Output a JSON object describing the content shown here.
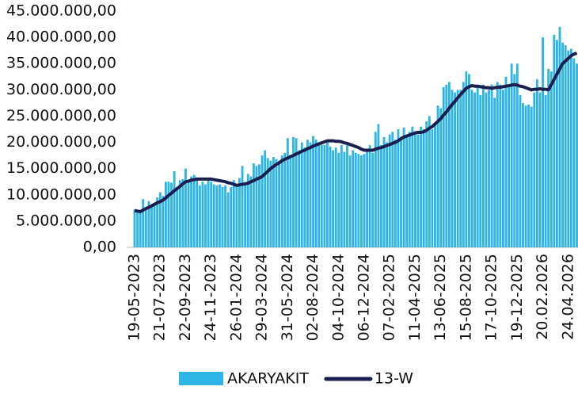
{
  "chart_data": {
    "type": "bar_line",
    "categories": [
      "19-05-2023",
      null,
      null,
      null,
      null,
      null,
      null,
      null,
      null,
      "21-07-2023",
      null,
      null,
      null,
      null,
      null,
      null,
      null,
      null,
      "22-09-2023",
      null,
      null,
      null,
      null,
      null,
      null,
      null,
      null,
      "24-11-2023",
      null,
      null,
      null,
      null,
      null,
      null,
      null,
      null,
      "26-01-2024",
      null,
      null,
      null,
      null,
      null,
      null,
      null,
      null,
      "29-03-2024",
      null,
      null,
      null,
      null,
      null,
      null,
      null,
      null,
      "31-05-2024",
      null,
      null,
      null,
      null,
      null,
      null,
      null,
      null,
      "02-08-2024",
      null,
      null,
      null,
      null,
      null,
      null,
      null,
      null,
      "04-10-2024",
      null,
      null,
      null,
      null,
      null,
      null,
      null,
      null,
      "06-12-2024",
      null,
      null,
      null,
      null,
      null,
      null,
      null,
      null,
      "07-02-2025",
      null,
      null,
      null,
      null,
      null,
      null,
      null,
      null,
      "11-04-2025",
      null,
      null,
      null,
      null,
      null,
      null,
      null,
      null,
      "13-06-2025",
      null,
      null,
      null,
      null,
      null,
      null,
      null,
      null,
      "15-08-2025",
      null,
      null,
      null,
      null,
      null,
      null,
      null,
      null,
      "17-10-2025",
      null,
      null,
      null,
      null,
      null,
      null,
      null,
      null,
      "19-12-2025",
      null,
      null,
      null,
      null,
      null,
      null,
      null,
      null,
      "20.02.2026",
      null,
      null,
      null,
      null,
      null,
      null,
      null,
      null,
      "24.04.2026",
      null,
      null,
      null
    ],
    "series": [
      {
        "name": "AKARYAKIT",
        "kind": "bar",
        "color": "#2fb4e6",
        "values": [
          7200000,
          6900000,
          7000000,
          9200000,
          7500000,
          8800000,
          8000000,
          8500000,
          9500000,
          10500000,
          9800000,
          12500000,
          12500000,
          12300000,
          14500000,
          11500000,
          12800000,
          13000000,
          15000000,
          12500000,
          13500000,
          13800000,
          13200000,
          11800000,
          12500000,
          12000000,
          13000000,
          12500000,
          12000000,
          11800000,
          12000000,
          11500000,
          11800000,
          10500000,
          11500000,
          12800000,
          11800000,
          13200000,
          15500000,
          12000000,
          14000000,
          13500000,
          16000000,
          15500000,
          15800000,
          17500000,
          18500000,
          17000000,
          16500000,
          17200000,
          16800000,
          16500000,
          17500000,
          18000000,
          20800000,
          17500000,
          21000000,
          20800000,
          18500000,
          20000000,
          19000000,
          20500000,
          20000000,
          21200000,
          20500000,
          20000000,
          19500000,
          19500000,
          20500000,
          19200000,
          18500000,
          19000000,
          18000000,
          19500000,
          18200000,
          19500000,
          17500000,
          18500000,
          18000000,
          17800000,
          17500000,
          17800000,
          18500000,
          19500000,
          18000000,
          22000000,
          23500000,
          19500000,
          21000000,
          20000000,
          21500000,
          22000000,
          20500000,
          22500000,
          21000000,
          22800000,
          21500000,
          22000000,
          23000000,
          22000000,
          21500000,
          23000000,
          22500000,
          24000000,
          25000000,
          22500000,
          23500000,
          27000000,
          26500000,
          30500000,
          31000000,
          31500000,
          30000000,
          29500000,
          30000000,
          30000000,
          31500000,
          33500000,
          33000000,
          30000000,
          29500000,
          30500000,
          29000000,
          31000000,
          29500000,
          30000000,
          31000000,
          28500000,
          31500000,
          31000000,
          30000000,
          32500000,
          31000000,
          35000000,
          33000000,
          35000000,
          29000000,
          27500000,
          27000000,
          27200000,
          26800000,
          29500000,
          32000000,
          29500000,
          40000000,
          29000000,
          34000000,
          33500000,
          40500000,
          39500000,
          42000000,
          39000000,
          38500000,
          37500000,
          37800000,
          36000000,
          35000000
        ]
      },
      {
        "name": "13-W",
        "kind": "line",
        "color": "#1b1f4f",
        "values": [
          7000000,
          6900000,
          6800000,
          7100000,
          7400000,
          7600000,
          7900000,
          8200000,
          8500000,
          8700000,
          9000000,
          9400000,
          9900000,
          10300000,
          10800000,
          11200000,
          11600000,
          12100000,
          12500000,
          12600000,
          12800000,
          12900000,
          13000000,
          13000000,
          13000000,
          13000000,
          13000000,
          13000000,
          12900000,
          12800000,
          12700000,
          12600000,
          12500000,
          12300000,
          12200000,
          12000000,
          11800000,
          11900000,
          12000000,
          12100000,
          12200000,
          12500000,
          12700000,
          13000000,
          13200000,
          13500000,
          14000000,
          14500000,
          15000000,
          15400000,
          15800000,
          16100000,
          16500000,
          16800000,
          17000000,
          17300000,
          17500000,
          17800000,
          18000000,
          18300000,
          18500000,
          18800000,
          19000000,
          19300000,
          19500000,
          19700000,
          19900000,
          20100000,
          20300000,
          20300000,
          20300000,
          20200000,
          20200000,
          20100000,
          19900000,
          19800000,
          19600000,
          19400000,
          19200000,
          19000000,
          18700000,
          18500000,
          18500000,
          18500000,
          18500000,
          18700000,
          18900000,
          19000000,
          19200000,
          19400000,
          19600000,
          19800000,
          20000000,
          20300000,
          20700000,
          21000000,
          21200000,
          21400000,
          21600000,
          21800000,
          21900000,
          21900000,
          22000000,
          22300000,
          22700000,
          23000000,
          23500000,
          24000000,
          24500000,
          25200000,
          25800000,
          26500000,
          27200000,
          27800000,
          28500000,
          29100000,
          29700000,
          30300000,
          30600000,
          30800000,
          30700000,
          30700000,
          30600000,
          30500000,
          30400000,
          30400000,
          30300000,
          30400000,
          30500000,
          30500000,
          30600000,
          30700000,
          30800000,
          30900000,
          31000000,
          30900000,
          30700000,
          30600000,
          30400000,
          30200000,
          30000000,
          30100000,
          30100000,
          30200000,
          30100000,
          30100000,
          30000000,
          31000000,
          32000000,
          33000000,
          34000000,
          35000000,
          35500000,
          36000000,
          36500000,
          36800000,
          37000000
        ]
      }
    ],
    "ylim": [
      0,
      45000000
    ],
    "yticks": [
      {
        "value": 0,
        "label": "0,00"
      },
      {
        "value": 5000000,
        "label": "5.000.000,00"
      },
      {
        "value": 10000000,
        "label": "10.000.000,00"
      },
      {
        "value": 15000000,
        "label": "15.000.000,00"
      },
      {
        "value": 20000000,
        "label": "20.000.000,00"
      },
      {
        "value": 25000000,
        "label": "25.000.000,00"
      },
      {
        "value": 30000000,
        "label": "30.000.000,00"
      },
      {
        "value": 35000000,
        "label": "35.000.000,00"
      },
      {
        "value": 40000000,
        "label": "40.000.000,00"
      },
      {
        "value": 45000000,
        "label": "45.000.000,00"
      }
    ],
    "legend": "bottom"
  }
}
